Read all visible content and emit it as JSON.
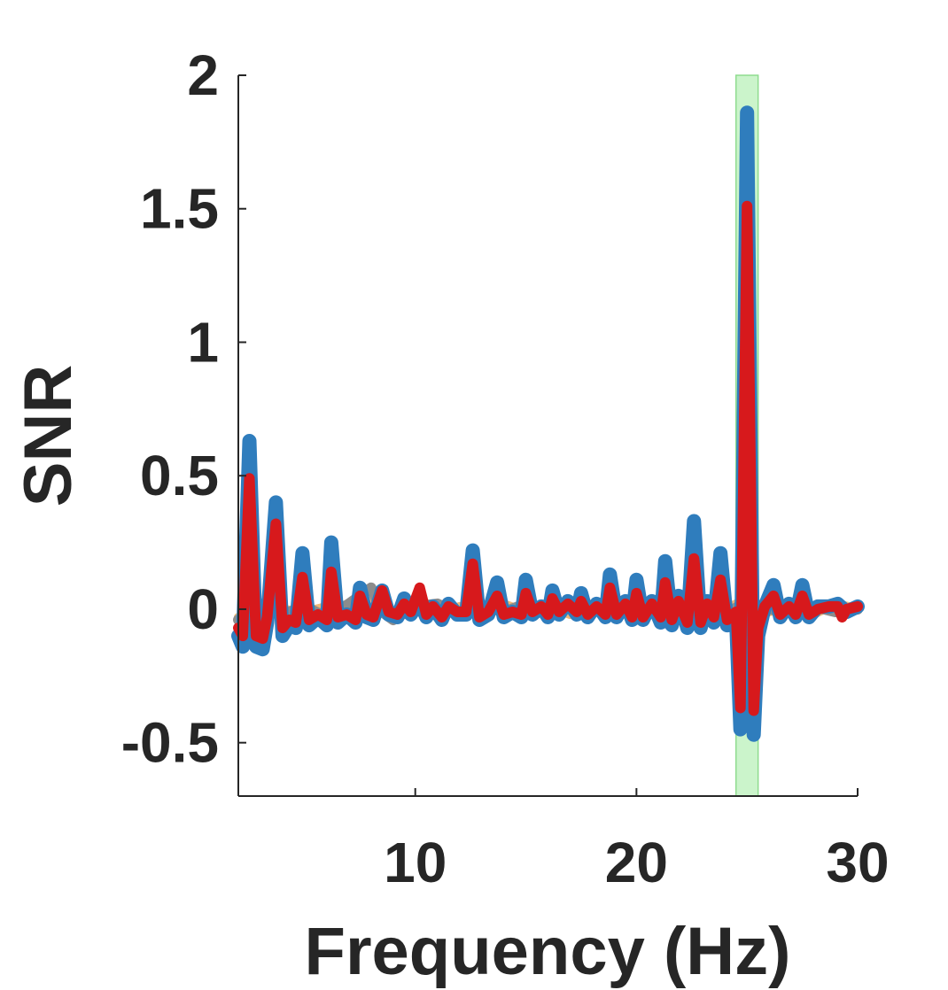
{
  "chart_data": {
    "type": "line",
    "xlabel": "Frequency (Hz)",
    "ylabel": "SNR",
    "xlim": [
      2,
      30
    ],
    "ylim": [
      -0.7,
      2
    ],
    "xticks": [
      10,
      20,
      30
    ],
    "yticks": [
      -0.5,
      0,
      0.5,
      1,
      1.5,
      2
    ],
    "xtick_labels": [
      "10",
      "20",
      "30"
    ],
    "ytick_labels": [
      "-0.5",
      "0",
      "0.5",
      "1",
      "1.5",
      "2"
    ],
    "grid": false,
    "legend": "none",
    "highlight_band": {
      "x": [
        24.5,
        25.5
      ],
      "color": "#b9f0b9"
    },
    "series": [
      {
        "color": "#f0b878",
        "values": [
          [
            2.0,
            -0.03
          ],
          [
            3.0,
            -0.02
          ],
          [
            4.0,
            0.0
          ],
          [
            5.0,
            -0.01
          ],
          [
            6.0,
            0.01
          ],
          [
            7.0,
            -0.02
          ],
          [
            8.0,
            0.03
          ],
          [
            9.0,
            -0.01
          ],
          [
            10.0,
            0.02
          ],
          [
            11.0,
            -0.02
          ],
          [
            12.0,
            0.01
          ],
          [
            13.0,
            -0.02
          ],
          [
            14.0,
            0.02
          ],
          [
            15.0,
            -0.01
          ],
          [
            16.0,
            0.01
          ],
          [
            17.0,
            -0.02
          ],
          [
            18.0,
            0.02
          ],
          [
            19.0,
            -0.01
          ],
          [
            20.0,
            0.01
          ],
          [
            21.0,
            0.0
          ],
          [
            22.0,
            -0.01
          ],
          [
            23.0,
            0.02
          ],
          [
            24.0,
            0.0
          ],
          [
            25.0,
            0.04
          ],
          [
            26.0,
            -0.01
          ],
          [
            27.0,
            0.01
          ],
          [
            28.0,
            -0.02
          ],
          [
            29.0,
            0.02
          ],
          [
            29.6,
            0.01
          ],
          [
            30.0,
            0.0
          ]
        ]
      },
      {
        "color": "#8c8c8c",
        "values": [
          [
            2.0,
            -0.04
          ],
          [
            3.0,
            0.02
          ],
          [
            4.0,
            -0.02
          ],
          [
            5.0,
            0.01
          ],
          [
            6.0,
            -0.03
          ],
          [
            7.0,
            0.02
          ],
          [
            8.0,
            0.08
          ],
          [
            8.5,
            -0.01
          ],
          [
            9.0,
            -0.04
          ],
          [
            10.0,
            0.01
          ],
          [
            11.0,
            0.02
          ],
          [
            12.0,
            -0.02
          ],
          [
            13.0,
            0.01
          ],
          [
            14.0,
            -0.01
          ],
          [
            15.0,
            0.02
          ],
          [
            16.0,
            -0.02
          ],
          [
            17.0,
            0.01
          ],
          [
            18.0,
            -0.01
          ],
          [
            19.0,
            0.02
          ],
          [
            20.0,
            -0.02
          ],
          [
            21.0,
            0.01
          ],
          [
            22.0,
            -0.01
          ],
          [
            23.0,
            0.01
          ],
          [
            24.0,
            -0.02
          ],
          [
            25.0,
            0.03
          ],
          [
            26.0,
            0.0
          ],
          [
            27.0,
            -0.01
          ],
          [
            28.0,
            0.01
          ],
          [
            29.0,
            -0.01
          ],
          [
            30.0,
            0.0
          ]
        ]
      },
      {
        "color": "#2f7dbd",
        "values": [
          [
            2.0,
            -0.1
          ],
          [
            2.2,
            -0.14
          ],
          [
            2.5,
            0.63
          ],
          [
            2.8,
            -0.14
          ],
          [
            3.1,
            -0.15
          ],
          [
            3.3,
            -0.05
          ],
          [
            3.7,
            0.4
          ],
          [
            4.0,
            -0.1
          ],
          [
            4.3,
            -0.06
          ],
          [
            4.6,
            -0.07
          ],
          [
            4.9,
            0.21
          ],
          [
            5.2,
            -0.06
          ],
          [
            5.6,
            -0.03
          ],
          [
            6.0,
            -0.06
          ],
          [
            6.2,
            0.25
          ],
          [
            6.5,
            -0.05
          ],
          [
            6.9,
            -0.02
          ],
          [
            7.3,
            -0.05
          ],
          [
            7.5,
            0.08
          ],
          [
            7.8,
            -0.03
          ],
          [
            8.1,
            -0.04
          ],
          [
            8.5,
            0.07
          ],
          [
            8.8,
            -0.02
          ],
          [
            9.2,
            -0.03
          ],
          [
            9.5,
            0.04
          ],
          [
            9.8,
            -0.02
          ],
          [
            10.2,
            0.03
          ],
          [
            10.5,
            -0.03
          ],
          [
            10.8,
            0.01
          ],
          [
            11.2,
            -0.04
          ],
          [
            11.5,
            0.02
          ],
          [
            11.9,
            -0.02
          ],
          [
            12.3,
            -0.02
          ],
          [
            12.6,
            0.22
          ],
          [
            12.9,
            -0.04
          ],
          [
            13.3,
            -0.02
          ],
          [
            13.7,
            0.1
          ],
          [
            14.0,
            -0.03
          ],
          [
            14.4,
            -0.01
          ],
          [
            14.8,
            -0.03
          ],
          [
            15.0,
            0.11
          ],
          [
            15.3,
            -0.02
          ],
          [
            15.7,
            0.01
          ],
          [
            16.0,
            -0.03
          ],
          [
            16.2,
            0.07
          ],
          [
            16.5,
            -0.02
          ],
          [
            16.9,
            0.03
          ],
          [
            17.3,
            -0.02
          ],
          [
            17.5,
            0.06
          ],
          [
            17.8,
            -0.03
          ],
          [
            18.2,
            0.02
          ],
          [
            18.6,
            -0.03
          ],
          [
            18.8,
            0.13
          ],
          [
            19.1,
            -0.03
          ],
          [
            19.5,
            0.03
          ],
          [
            19.8,
            -0.04
          ],
          [
            20.0,
            0.11
          ],
          [
            20.3,
            -0.04
          ],
          [
            20.7,
            0.03
          ],
          [
            21.1,
            -0.05
          ],
          [
            21.3,
            0.18
          ],
          [
            21.6,
            -0.06
          ],
          [
            21.9,
            0.05
          ],
          [
            22.3,
            -0.07
          ],
          [
            22.6,
            0.33
          ],
          [
            22.9,
            -0.07
          ],
          [
            23.2,
            0.03
          ],
          [
            23.5,
            -0.05
          ],
          [
            23.8,
            0.21
          ],
          [
            24.1,
            -0.06
          ],
          [
            24.5,
            -0.02
          ],
          [
            24.7,
            -0.45
          ],
          [
            25.0,
            1.86
          ],
          [
            25.3,
            -0.47
          ],
          [
            25.5,
            -0.1
          ],
          [
            25.8,
            0.01
          ],
          [
            26.2,
            0.09
          ],
          [
            26.5,
            -0.03
          ],
          [
            26.9,
            0.02
          ],
          [
            27.2,
            -0.03
          ],
          [
            27.5,
            0.09
          ],
          [
            27.8,
            -0.03
          ],
          [
            28.2,
            0.01
          ],
          [
            28.7,
            0.01
          ],
          [
            29.1,
            0.02
          ],
          [
            29.5,
            -0.01
          ],
          [
            30.0,
            0.01
          ]
        ]
      },
      {
        "color": "#d7191c",
        "values": [
          [
            2.0,
            -0.07
          ],
          [
            2.2,
            -0.1
          ],
          [
            2.5,
            0.49
          ],
          [
            2.8,
            -0.1
          ],
          [
            3.1,
            -0.11
          ],
          [
            3.3,
            -0.03
          ],
          [
            3.7,
            0.32
          ],
          [
            4.0,
            -0.07
          ],
          [
            4.3,
            -0.04
          ],
          [
            4.6,
            -0.05
          ],
          [
            4.9,
            0.12
          ],
          [
            5.2,
            -0.04
          ],
          [
            5.6,
            -0.02
          ],
          [
            6.0,
            -0.04
          ],
          [
            6.2,
            0.14
          ],
          [
            6.5,
            -0.03
          ],
          [
            6.9,
            -0.02
          ],
          [
            7.3,
            -0.04
          ],
          [
            7.5,
            0.05
          ],
          [
            7.8,
            -0.02
          ],
          [
            8.1,
            -0.03
          ],
          [
            8.5,
            0.07
          ],
          [
            8.8,
            -0.01
          ],
          [
            9.2,
            -0.02
          ],
          [
            9.5,
            0.02
          ],
          [
            9.8,
            -0.01
          ],
          [
            10.2,
            0.08
          ],
          [
            10.5,
            -0.02
          ],
          [
            10.8,
            0.01
          ],
          [
            11.2,
            -0.03
          ],
          [
            11.5,
            0.01
          ],
          [
            11.9,
            -0.01
          ],
          [
            12.3,
            -0.01
          ],
          [
            12.6,
            0.17
          ],
          [
            12.9,
            -0.03
          ],
          [
            13.3,
            -0.01
          ],
          [
            13.7,
            0.05
          ],
          [
            14.0,
            -0.02
          ],
          [
            14.4,
            -0.01
          ],
          [
            14.8,
            -0.02
          ],
          [
            15.0,
            0.06
          ],
          [
            15.3,
            -0.01
          ],
          [
            15.7,
            0.01
          ],
          [
            16.0,
            -0.02
          ],
          [
            16.2,
            0.04
          ],
          [
            16.5,
            -0.01
          ],
          [
            16.9,
            0.02
          ],
          [
            17.3,
            -0.01
          ],
          [
            17.5,
            0.03
          ],
          [
            17.8,
            -0.02
          ],
          [
            18.2,
            0.01
          ],
          [
            18.6,
            -0.02
          ],
          [
            18.8,
            0.08
          ],
          [
            19.1,
            -0.02
          ],
          [
            19.5,
            0.02
          ],
          [
            19.8,
            -0.03
          ],
          [
            20.0,
            0.06
          ],
          [
            20.3,
            -0.03
          ],
          [
            20.7,
            0.02
          ],
          [
            21.1,
            -0.03
          ],
          [
            21.3,
            0.1
          ],
          [
            21.6,
            -0.04
          ],
          [
            21.9,
            0.03
          ],
          [
            22.3,
            -0.05
          ],
          [
            22.6,
            0.19
          ],
          [
            22.9,
            -0.05
          ],
          [
            23.2,
            0.02
          ],
          [
            23.5,
            -0.03
          ],
          [
            23.8,
            0.11
          ],
          [
            24.1,
            -0.04
          ],
          [
            24.5,
            -0.01
          ],
          [
            24.7,
            -0.37
          ],
          [
            25.0,
            1.51
          ],
          [
            25.3,
            -0.38
          ],
          [
            25.5,
            -0.07
          ],
          [
            25.8,
            0.01
          ],
          [
            26.2,
            0.05
          ],
          [
            26.5,
            -0.02
          ],
          [
            26.9,
            0.01
          ],
          [
            27.2,
            -0.02
          ],
          [
            27.5,
            0.05
          ],
          [
            27.8,
            -0.02
          ],
          [
            28.2,
            0.0
          ],
          [
            28.7,
            0.01
          ],
          [
            29.1,
            0.01
          ],
          [
            29.3,
            -0.03
          ],
          [
            29.5,
            0.0
          ],
          [
            30.0,
            0.01
          ]
        ]
      }
    ]
  }
}
